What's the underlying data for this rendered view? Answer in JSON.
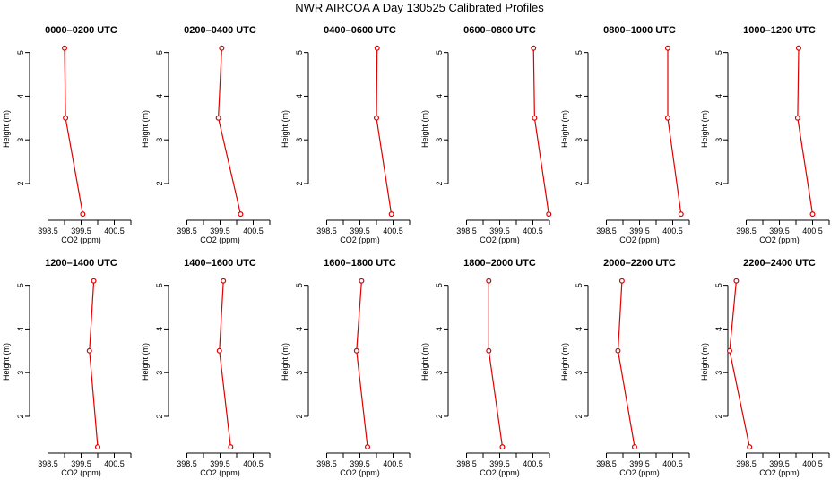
{
  "title": "NWR AIRCOA A  Day 130525  Calibrated Profiles",
  "style": {
    "line_color": "#e00000",
    "axis_color": "#000000"
  },
  "chart_data": [
    {
      "type": "line",
      "title": "0000–0200 UTC",
      "xlabel": "CO2 (ppm)",
      "ylabel": "Height (m)",
      "xlim": [
        398.0,
        401.0
      ],
      "ylim": [
        1.2,
        5.3
      ],
      "marker": "circle",
      "grid": false,
      "x_ticks": [
        398.5,
        399.0,
        399.5,
        400.0,
        400.5,
        401.0
      ],
      "x_tick_labels": [
        "398.5",
        "",
        "399.5",
        "",
        "400.5",
        ""
      ],
      "y_ticks": [
        2,
        3,
        4,
        5
      ],
      "y_tick_labels": [
        "2",
        "3",
        "4",
        "5"
      ],
      "series": [
        {
          "x": [
            399.55,
            399.03,
            399.0
          ],
          "y": [
            1.3,
            3.5,
            5.1
          ]
        }
      ]
    },
    {
      "type": "line",
      "title": "0200–0400 UTC",
      "xlabel": "CO2 (ppm)",
      "ylabel": "Height (m)",
      "xlim": [
        398.0,
        401.0
      ],
      "ylim": [
        1.2,
        5.3
      ],
      "marker": "circle",
      "grid": false,
      "x_ticks": [
        398.5,
        399.0,
        399.5,
        400.0,
        400.5,
        401.0
      ],
      "x_tick_labels": [
        "398.5",
        "",
        "399.5",
        "",
        "400.5",
        ""
      ],
      "y_ticks": [
        2,
        3,
        4,
        5
      ],
      "y_tick_labels": [
        "2",
        "3",
        "4",
        "5"
      ],
      "series": [
        {
          "x": [
            400.12,
            399.45,
            399.55
          ],
          "y": [
            1.3,
            3.5,
            5.1
          ]
        }
      ]
    },
    {
      "type": "line",
      "title": "0400–0600 UTC",
      "xlabel": "CO2 (ppm)",
      "ylabel": "Height (m)",
      "xlim": [
        398.0,
        401.0
      ],
      "ylim": [
        1.2,
        5.3
      ],
      "marker": "circle",
      "grid": false,
      "x_ticks": [
        398.5,
        399.0,
        399.5,
        400.0,
        400.5,
        401.0
      ],
      "x_tick_labels": [
        "398.5",
        "",
        "399.5",
        "",
        "400.5",
        ""
      ],
      "y_ticks": [
        2,
        3,
        4,
        5
      ],
      "y_tick_labels": [
        "2",
        "3",
        "4",
        "5"
      ],
      "series": [
        {
          "x": [
            400.45,
            400.0,
            400.02
          ],
          "y": [
            1.3,
            3.5,
            5.1
          ]
        }
      ]
    },
    {
      "type": "line",
      "title": "0600–0800 UTC",
      "xlabel": "CO2 (ppm)",
      "ylabel": "Height (m)",
      "xlim": [
        398.0,
        401.0
      ],
      "ylim": [
        1.2,
        5.3
      ],
      "marker": "circle",
      "grid": false,
      "x_ticks": [
        398.5,
        399.0,
        399.5,
        400.0,
        400.5,
        401.0
      ],
      "x_tick_labels": [
        "398.5",
        "",
        "399.5",
        "",
        "400.5",
        ""
      ],
      "y_ticks": [
        2,
        3,
        4,
        5
      ],
      "y_tick_labels": [
        "2",
        "3",
        "4",
        "5"
      ],
      "series": [
        {
          "x": [
            400.98,
            400.55,
            400.52
          ],
          "y": [
            1.3,
            3.5,
            5.1
          ]
        }
      ]
    },
    {
      "type": "line",
      "title": "0800–1000 UTC",
      "xlabel": "CO2 (ppm)",
      "ylabel": "Height (m)",
      "xlim": [
        398.0,
        401.0
      ],
      "ylim": [
        1.2,
        5.3
      ],
      "marker": "circle",
      "grid": false,
      "x_ticks": [
        398.5,
        399.0,
        399.5,
        400.0,
        400.5,
        401.0
      ],
      "x_tick_labels": [
        "398.5",
        "",
        "399.5",
        "",
        "400.5",
        ""
      ],
      "y_ticks": [
        2,
        3,
        4,
        5
      ],
      "y_tick_labels": [
        "2",
        "3",
        "4",
        "5"
      ],
      "series": [
        {
          "x": [
            400.75,
            400.35,
            400.35
          ],
          "y": [
            1.3,
            3.5,
            5.1
          ]
        }
      ]
    },
    {
      "type": "line",
      "title": "1000–1200 UTC",
      "xlabel": "CO2 (ppm)",
      "ylabel": "Height (m)",
      "xlim": [
        398.0,
        401.0
      ],
      "ylim": [
        1.2,
        5.3
      ],
      "marker": "circle",
      "grid": false,
      "x_ticks": [
        398.5,
        399.0,
        399.5,
        400.0,
        400.5,
        401.0
      ],
      "x_tick_labels": [
        "398.5",
        "",
        "399.5",
        "",
        "400.5",
        ""
      ],
      "y_ticks": [
        2,
        3,
        4,
        5
      ],
      "y_tick_labels": [
        "2",
        "3",
        "4",
        "5"
      ],
      "series": [
        {
          "x": [
            400.5,
            400.05,
            400.08
          ],
          "y": [
            1.3,
            3.5,
            5.1
          ]
        }
      ]
    },
    {
      "type": "line",
      "title": "1200–1400 UTC",
      "xlabel": "CO2 (ppm)",
      "ylabel": "Height (m)",
      "xlim": [
        398.0,
        401.0
      ],
      "ylim": [
        1.2,
        5.3
      ],
      "marker": "circle",
      "grid": false,
      "x_ticks": [
        398.5,
        399.0,
        399.5,
        400.0,
        400.5,
        401.0
      ],
      "x_tick_labels": [
        "398.5",
        "",
        "399.5",
        "",
        "400.5",
        ""
      ],
      "y_ticks": [
        2,
        3,
        4,
        5
      ],
      "y_tick_labels": [
        "2",
        "3",
        "4",
        "5"
      ],
      "series": [
        {
          "x": [
            400.0,
            399.75,
            399.88
          ],
          "y": [
            1.3,
            3.5,
            5.1
          ]
        }
      ]
    },
    {
      "type": "line",
      "title": "1400–1600 UTC",
      "xlabel": "CO2 (ppm)",
      "ylabel": "Height (m)",
      "xlim": [
        398.0,
        401.0
      ],
      "ylim": [
        1.2,
        5.3
      ],
      "marker": "circle",
      "grid": false,
      "x_ticks": [
        398.5,
        399.0,
        399.5,
        400.0,
        400.5,
        401.0
      ],
      "x_tick_labels": [
        "398.5",
        "",
        "399.5",
        "",
        "400.5",
        ""
      ],
      "y_ticks": [
        2,
        3,
        4,
        5
      ],
      "y_tick_labels": [
        "2",
        "3",
        "4",
        "5"
      ],
      "series": [
        {
          "x": [
            399.82,
            399.48,
            399.6
          ],
          "y": [
            1.3,
            3.5,
            5.1
          ]
        }
      ]
    },
    {
      "type": "line",
      "title": "1600–1800 UTC",
      "xlabel": "CO2 (ppm)",
      "ylabel": "Height (m)",
      "xlim": [
        398.0,
        401.0
      ],
      "ylim": [
        1.2,
        5.3
      ],
      "marker": "circle",
      "grid": false,
      "x_ticks": [
        398.5,
        399.0,
        399.5,
        400.0,
        400.5,
        401.0
      ],
      "x_tick_labels": [
        "398.5",
        "",
        "399.5",
        "",
        "400.5",
        ""
      ],
      "y_ticks": [
        2,
        3,
        4,
        5
      ],
      "y_tick_labels": [
        "2",
        "3",
        "4",
        "5"
      ],
      "series": [
        {
          "x": [
            399.73,
            399.4,
            399.55
          ],
          "y": [
            1.3,
            3.5,
            5.1
          ]
        }
      ]
    },
    {
      "type": "line",
      "title": "1800–2000 UTC",
      "xlabel": "CO2 (ppm)",
      "ylabel": "Height (m)",
      "xlim": [
        398.0,
        401.0
      ],
      "ylim": [
        1.2,
        5.3
      ],
      "marker": "circle",
      "grid": false,
      "x_ticks": [
        398.5,
        399.0,
        399.5,
        400.0,
        400.5,
        401.0
      ],
      "x_tick_labels": [
        "398.5",
        "",
        "399.5",
        "",
        "400.5",
        ""
      ],
      "y_ticks": [
        2,
        3,
        4,
        5
      ],
      "y_tick_labels": [
        "2",
        "3",
        "4",
        "5"
      ],
      "series": [
        {
          "x": [
            399.58,
            399.17,
            399.17
          ],
          "y": [
            1.3,
            3.5,
            5.1
          ]
        }
      ]
    },
    {
      "type": "line",
      "title": "2000–2200 UTC",
      "xlabel": "CO2 (ppm)",
      "ylabel": "Height (m)",
      "xlim": [
        398.0,
        401.0
      ],
      "ylim": [
        1.2,
        5.3
      ],
      "marker": "circle",
      "grid": false,
      "x_ticks": [
        398.5,
        399.0,
        399.5,
        400.0,
        400.5,
        401.0
      ],
      "x_tick_labels": [
        "398.5",
        "",
        "399.5",
        "",
        "400.5",
        ""
      ],
      "y_ticks": [
        2,
        3,
        4,
        5
      ],
      "y_tick_labels": [
        "2",
        "3",
        "4",
        "5"
      ],
      "series": [
        {
          "x": [
            399.35,
            398.85,
            398.97
          ],
          "y": [
            1.3,
            3.5,
            5.1
          ]
        }
      ]
    },
    {
      "type": "line",
      "title": "2200–2400 UTC",
      "xlabel": "CO2 (ppm)",
      "ylabel": "Height (m)",
      "xlim": [
        398.0,
        401.0
      ],
      "ylim": [
        1.2,
        5.3
      ],
      "marker": "circle",
      "grid": false,
      "x_ticks": [
        398.5,
        399.0,
        399.5,
        400.0,
        400.5,
        401.0
      ],
      "x_tick_labels": [
        "398.5",
        "",
        "399.5",
        "",
        "400.5",
        ""
      ],
      "y_ticks": [
        2,
        3,
        4,
        5
      ],
      "y_tick_labels": [
        "2",
        "3",
        "4",
        "5"
      ],
      "series": [
        {
          "x": [
            398.6,
            398.0,
            398.2
          ],
          "y": [
            1.3,
            3.5,
            5.1
          ]
        }
      ]
    }
  ]
}
